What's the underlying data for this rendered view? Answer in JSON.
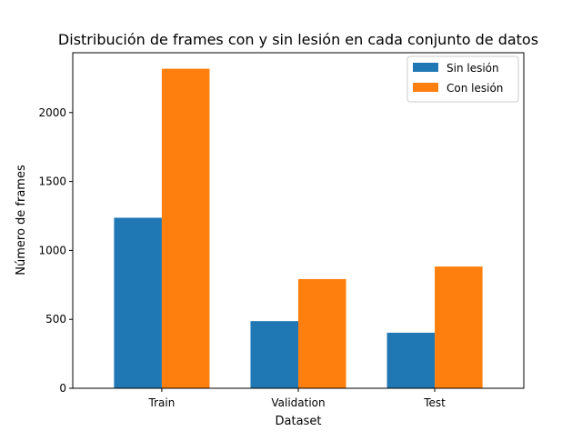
{
  "chart_data": {
    "type": "bar",
    "title": "Distribución de frames con y sin lesión en cada conjunto de datos",
    "xlabel": "Dataset",
    "ylabel": "Número de frames",
    "categories": [
      "Train",
      "Validation",
      "Test"
    ],
    "series": [
      {
        "name": "Sin lesión",
        "values": [
          1237,
          487,
          403
        ],
        "color": "#1f77b4"
      },
      {
        "name": "Con lesión",
        "values": [
          2318,
          792,
          883
        ],
        "color": "#ff7f0e"
      }
    ],
    "ylim": [
      0,
      2434
    ],
    "yticks": [
      0,
      500,
      1000,
      1500,
      2000
    ],
    "grid": false,
    "legend_position": "top-right"
  }
}
